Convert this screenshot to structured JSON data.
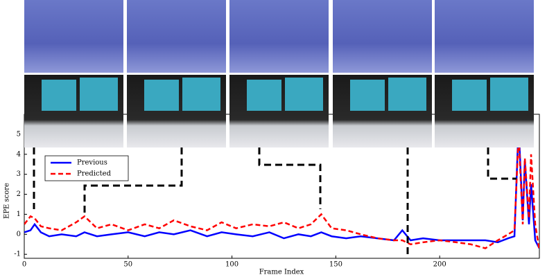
{
  "chart_data": {
    "type": "line",
    "x_label": "Frame Index",
    "y_label": "EPE score",
    "x": [
      0,
      3,
      5,
      8,
      12,
      18,
      25,
      29,
      35,
      42,
      50,
      58,
      65,
      72,
      80,
      88,
      95,
      102,
      110,
      118,
      125,
      132,
      138,
      143,
      148,
      155,
      162,
      170,
      178,
      182,
      186,
      192,
      200,
      208,
      215,
      222,
      228,
      233,
      236,
      238,
      240,
      241,
      243,
      244,
      246,
      248
    ],
    "series": [
      {
        "name": "Previous",
        "color": "#0000ff",
        "dash": "solid",
        "values": [
          0.1,
          0.2,
          0.5,
          0.1,
          -0.1,
          0.0,
          -0.1,
          0.1,
          -0.1,
          0.0,
          0.1,
          -0.1,
          0.1,
          0.0,
          0.2,
          -0.1,
          0.1,
          0.0,
          -0.1,
          0.1,
          -0.2,
          0.0,
          -0.1,
          0.1,
          -0.1,
          -0.2,
          -0.1,
          -0.2,
          -0.3,
          0.2,
          -0.3,
          -0.2,
          -0.3,
          -0.3,
          -0.3,
          -0.3,
          -0.4,
          -0.2,
          -0.1,
          5.5,
          0.7,
          3.7,
          0.5,
          2.5,
          -0.3,
          -0.7
        ]
      },
      {
        "name": "Predicted",
        "color": "#ff0000",
        "dash": "dashed",
        "values": [
          0.5,
          0.9,
          0.8,
          0.4,
          0.3,
          0.2,
          0.6,
          0.9,
          0.3,
          0.5,
          0.2,
          0.5,
          0.3,
          0.7,
          0.4,
          0.2,
          0.6,
          0.3,
          0.5,
          0.4,
          0.6,
          0.3,
          0.5,
          1.0,
          0.3,
          0.2,
          0.0,
          -0.2,
          -0.3,
          -0.3,
          -0.5,
          -0.4,
          -0.3,
          -0.4,
          -0.5,
          -0.7,
          -0.3,
          0.0,
          0.2,
          5.0,
          0.5,
          3.8,
          0.8,
          4.0,
          0.5,
          -0.8
        ]
      }
    ],
    "xlim": [
      0,
      248
    ],
    "ylim": [
      -1.2,
      6
    ],
    "xticks": [
      0,
      50,
      100,
      150,
      200
    ],
    "yticks": [
      -1,
      0,
      1,
      2,
      3,
      4,
      5
    ],
    "legend": "upper left"
  }
}
